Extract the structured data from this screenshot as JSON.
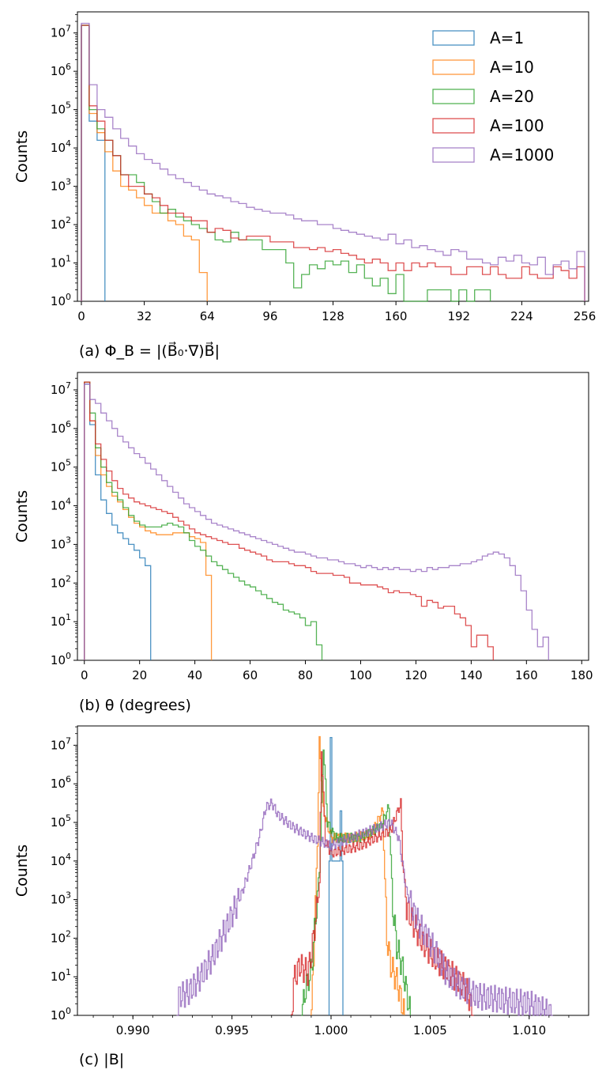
{
  "colors": {
    "A1": "#1f77b4",
    "A10": "#ff7f0e",
    "A20": "#2ca02c",
    "A100": "#d62728",
    "A1000": "#9467bd"
  },
  "chart_data": [
    {
      "type": "histogram",
      "title": "",
      "xlabel": "(a) Φ_B = |(B⃗₀·∇)B⃗|",
      "ylabel": "Counts",
      "yscale": "log",
      "xlim": [
        -2,
        258
      ],
      "ylim_exp": [
        0,
        7.55
      ],
      "xticks": [
        0,
        32,
        64,
        96,
        128,
        160,
        192,
        224,
        256
      ],
      "yticks_exp": [
        0,
        1,
        2,
        3,
        4,
        5,
        6,
        7
      ],
      "legend": {
        "position": "top-right",
        "entries": [
          "A=1",
          "A=10",
          "A=20",
          "A=100",
          "A=1000"
        ]
      },
      "bin_width": 4,
      "series": [
        {
          "name": "A=1",
          "color": "#1f77b4",
          "log_counts": [
            7.2,
            4.7,
            4.2
          ]
        },
        {
          "name": "A=10",
          "color": "#ff7f0e",
          "log_counts": [
            7.2,
            4.9,
            4.4,
            3.9,
            3.4,
            3.0,
            2.9,
            2.7,
            2.5,
            2.3,
            2.3,
            2.1,
            2.0,
            1.7,
            1.6,
            0.75
          ]
        },
        {
          "name": "A=20",
          "color": "#2ca02c",
          "log_counts": [
            7.2,
            5.0,
            4.5,
            4.2,
            3.8,
            3.3,
            3.3,
            3.1,
            2.8,
            2.6,
            2.3,
            2.4,
            2.2,
            2.1,
            2.0,
            1.9,
            1.8,
            1.6,
            1.55,
            1.8,
            1.6,
            1.6,
            1.6,
            1.35,
            1.35,
            1.35,
            1.0,
            0.35,
            0.7,
            0.95,
            0.85,
            1.05,
            0.95,
            1.05,
            0.75,
            0.95,
            0.6,
            0.4,
            0.6,
            0.2,
            0.7,
            0.0,
            0.0,
            0.0,
            0.3,
            0.3,
            0.3,
            0.0,
            0.3,
            0.0,
            0.3,
            0.3
          ]
        },
        {
          "name": "A=100",
          "color": "#d62728",
          "log_counts": [
            7.2,
            5.1,
            4.7,
            4.2,
            3.8,
            3.3,
            3.0,
            3.0,
            2.8,
            2.7,
            2.5,
            2.3,
            2.3,
            2.2,
            2.1,
            2.1,
            1.8,
            1.9,
            1.85,
            1.65,
            1.6,
            1.7,
            1.7,
            1.7,
            1.55,
            1.55,
            1.55,
            1.4,
            1.4,
            1.35,
            1.4,
            1.3,
            1.35,
            1.25,
            1.2,
            1.1,
            1.0,
            1.1,
            1.0,
            0.8,
            1.0,
            0.8,
            1.0,
            0.9,
            1.0,
            0.9,
            0.9,
            0.7,
            0.7,
            0.9,
            0.9,
            0.7,
            0.9,
            0.7,
            0.6,
            0.6,
            0.9,
            0.7,
            0.6,
            0.6,
            0.9,
            0.8,
            0.6,
            0.9
          ]
        },
        {
          "name": "A=1000",
          "color": "#9467bd",
          "log_counts": [
            7.25,
            5.65,
            5.0,
            4.8,
            4.5,
            4.25,
            4.05,
            3.85,
            3.7,
            3.6,
            3.45,
            3.3,
            3.2,
            3.1,
            3.0,
            2.9,
            2.8,
            2.75,
            2.7,
            2.6,
            2.55,
            2.45,
            2.4,
            2.35,
            2.3,
            2.3,
            2.25,
            2.15,
            2.1,
            2.1,
            2.0,
            2.0,
            1.9,
            1.85,
            1.8,
            1.75,
            1.7,
            1.65,
            1.6,
            1.75,
            1.5,
            1.6,
            1.4,
            1.45,
            1.35,
            1.3,
            1.2,
            1.35,
            1.3,
            1.1,
            1.1,
            1.0,
            0.95,
            1.15,
            1.05,
            1.2,
            1.0,
            0.95,
            1.15,
            0.7,
            0.95,
            1.05,
            0.85,
            1.3
          ]
        }
      ]
    },
    {
      "type": "histogram",
      "xlabel": "(b) θ (degrees)",
      "ylabel": "Counts",
      "yscale": "log",
      "xlim": [
        -2.5,
        182.5
      ],
      "ylim_exp": [
        0,
        7.45
      ],
      "xticks": [
        0,
        20,
        40,
        60,
        80,
        100,
        120,
        140,
        160,
        180
      ],
      "yticks_exp": [
        0,
        1,
        2,
        3,
        4,
        5,
        6,
        7
      ],
      "bin_width": 2,
      "series": [
        {
          "name": "A=1",
          "color": "#1f77b4",
          "log_counts": [
            7.15,
            6.1,
            4.8,
            4.15,
            3.8,
            3.5,
            3.3,
            3.15,
            3.0,
            2.85,
            2.65,
            2.45
          ]
        },
        {
          "name": "A=10",
          "color": "#ff7f0e",
          "log_counts": [
            7.2,
            6.2,
            5.3,
            4.8,
            4.5,
            4.25,
            4.1,
            3.9,
            3.7,
            3.55,
            3.45,
            3.35,
            3.3,
            3.25,
            3.25,
            3.25,
            3.3,
            3.3,
            3.3,
            3.2,
            3.15,
            3.05,
            2.2
          ]
        },
        {
          "name": "A=20",
          "color": "#2ca02c",
          "log_counts": [
            7.2,
            6.4,
            5.5,
            5.0,
            4.6,
            4.35,
            4.15,
            3.95,
            3.75,
            3.6,
            3.5,
            3.45,
            3.45,
            3.45,
            3.5,
            3.55,
            3.5,
            3.45,
            3.3,
            3.1,
            2.95,
            2.85,
            2.7,
            2.55,
            2.45,
            2.35,
            2.25,
            2.15,
            2.05,
            1.95,
            1.9,
            1.8,
            1.7,
            1.6,
            1.5,
            1.45,
            1.3,
            1.25,
            1.2,
            1.1,
            0.9,
            1.0,
            0.4
          ]
        },
        {
          "name": "A=100",
          "color": "#d62728",
          "log_counts": [
            7.2,
            6.2,
            5.6,
            5.2,
            4.9,
            4.65,
            4.45,
            4.3,
            4.2,
            4.1,
            4.05,
            4.0,
            3.95,
            3.9,
            3.85,
            3.8,
            3.7,
            3.6,
            3.5,
            3.4,
            3.3,
            3.25,
            3.2,
            3.15,
            3.1,
            3.05,
            3.0,
            3.0,
            2.9,
            2.85,
            2.8,
            2.75,
            2.7,
            2.6,
            2.55,
            2.55,
            2.55,
            2.5,
            2.45,
            2.45,
            2.4,
            2.3,
            2.25,
            2.25,
            2.25,
            2.2,
            2.2,
            2.15,
            2.0,
            2.0,
            1.95,
            1.95,
            1.95,
            1.9,
            1.85,
            1.75,
            1.8,
            1.75,
            1.75,
            1.7,
            1.65,
            1.4,
            1.55,
            1.5,
            1.35,
            1.4,
            1.4,
            1.2,
            1.1,
            0.9,
            0.35,
            0.65,
            0.65,
            0.35
          ]
        },
        {
          "name": "A=1000",
          "color": "#9467bd",
          "log_counts": [
            7.15,
            6.75,
            6.65,
            6.4,
            6.2,
            6.0,
            5.8,
            5.65,
            5.5,
            5.35,
            5.25,
            5.1,
            4.95,
            4.8,
            4.65,
            4.5,
            4.35,
            4.2,
            4.05,
            3.95,
            3.85,
            3.75,
            3.65,
            3.55,
            3.5,
            3.45,
            3.4,
            3.35,
            3.3,
            3.25,
            3.2,
            3.15,
            3.1,
            3.05,
            3.0,
            2.95,
            2.9,
            2.85,
            2.8,
            2.8,
            2.75,
            2.7,
            2.65,
            2.65,
            2.6,
            2.6,
            2.55,
            2.5,
            2.5,
            2.45,
            2.4,
            2.45,
            2.4,
            2.35,
            2.4,
            2.35,
            2.4,
            2.35,
            2.35,
            2.3,
            2.35,
            2.3,
            2.4,
            2.35,
            2.4,
            2.4,
            2.45,
            2.45,
            2.5,
            2.5,
            2.55,
            2.6,
            2.7,
            2.75,
            2.8,
            2.75,
            2.65,
            2.45,
            2.2,
            1.8,
            1.3,
            0.8,
            0.35,
            0.6
          ]
        }
      ]
    },
    {
      "type": "histogram",
      "xlabel": "(c) |B|",
      "ylabel": "Counts",
      "yscale": "log",
      "xlim": [
        0.9872,
        1.013
      ],
      "ylim_exp": [
        0,
        7.5
      ],
      "xticks": [
        0.99,
        0.995,
        1.0,
        1.005,
        1.01
      ],
      "yticks_exp": [
        0,
        1,
        2,
        3,
        4,
        5,
        6,
        7
      ],
      "series": [
        {
          "name": "A=1",
          "color": "#1f77b4",
          "spikes": [
            [
              1.0,
              7.2
            ],
            [
              1.0005,
              5.3
            ]
          ],
          "base": [
            0.9999,
            1.0006,
            4.0
          ]
        },
        {
          "name": "A=10",
          "color": "#ff7f0e",
          "range": [
            0.999,
            1.0037
          ],
          "profile": [
            [
              0.999,
              0.0
            ],
            [
              0.9991,
              1.5
            ],
            [
              0.9992,
              3.0
            ],
            [
              0.9993,
              4.5
            ],
            [
              0.9994,
              7.1
            ],
            [
              0.9996,
              5.3
            ],
            [
              1.0,
              4.6
            ],
            [
              1.001,
              4.6
            ],
            [
              1.002,
              4.7
            ],
            [
              1.0026,
              5.3
            ],
            [
              1.0027,
              3.5
            ],
            [
              1.0028,
              2.0
            ],
            [
              1.003,
              1.3
            ],
            [
              1.0033,
              0.9
            ],
            [
              1.0037,
              0.0
            ]
          ]
        },
        {
          "name": "A=20",
          "color": "#2ca02c",
          "range": [
            0.9985,
            1.004
          ],
          "profile": [
            [
              0.9985,
              0.0
            ],
            [
              0.9987,
              0.7
            ],
            [
              0.999,
              1.2
            ],
            [
              0.9992,
              2.5
            ],
            [
              0.9994,
              3.8
            ],
            [
              0.9996,
              7.0
            ],
            [
              0.9998,
              5.0
            ],
            [
              1.0002,
              4.6
            ],
            [
              1.0015,
              4.6
            ],
            [
              1.0025,
              4.9
            ],
            [
              1.0029,
              5.4
            ],
            [
              1.0031,
              2.8
            ],
            [
              1.0033,
              1.8
            ],
            [
              1.0036,
              1.2
            ],
            [
              1.004,
              0.0
            ]
          ]
        },
        {
          "name": "A=100",
          "color": "#d62728",
          "range": [
            0.998,
            1.0072
          ],
          "profile": [
            [
              0.998,
              0.0
            ],
            [
              0.9981,
              0.9
            ],
            [
              0.9984,
              1.3
            ],
            [
              0.9988,
              1.1
            ],
            [
              0.999,
              1.6
            ],
            [
              0.9992,
              2.5
            ],
            [
              0.9994,
              3.4
            ],
            [
              0.9995,
              6.9
            ],
            [
              0.9997,
              4.5
            ],
            [
              1.0,
              4.2
            ],
            [
              1.0015,
              4.4
            ],
            [
              1.003,
              4.8
            ],
            [
              1.0035,
              5.5
            ],
            [
              1.0036,
              4.0
            ],
            [
              1.0038,
              2.8
            ],
            [
              1.0042,
              2.3
            ],
            [
              1.0046,
              1.9
            ],
            [
              1.0052,
              1.5
            ],
            [
              1.0058,
              1.2
            ],
            [
              1.0064,
              0.9
            ],
            [
              1.0068,
              0.7
            ],
            [
              1.0072,
              0.0
            ]
          ]
        },
        {
          "name": "A=1000",
          "color": "#9467bd",
          "range": [
            0.9922,
            1.0112
          ],
          "profile": [
            [
              0.9922,
              0.0
            ],
            [
              0.9923,
              0.5
            ],
            [
              0.9928,
              0.6
            ],
            [
              0.9934,
              1.0
            ],
            [
              0.994,
              1.5
            ],
            [
              0.9948,
              2.4
            ],
            [
              0.9955,
              3.2
            ],
            [
              0.996,
              4.0
            ],
            [
              0.9964,
              4.7
            ],
            [
              0.9967,
              5.4
            ],
            [
              0.997,
              5.5
            ],
            [
              0.9973,
              5.2
            ],
            [
              0.998,
              4.9
            ],
            [
              0.999,
              4.6
            ],
            [
              1.0,
              4.4
            ],
            [
              1.001,
              4.6
            ],
            [
              1.002,
              4.8
            ],
            [
              1.003,
              5.0
            ],
            [
              1.0034,
              4.6
            ],
            [
              1.0038,
              3.2
            ],
            [
              1.0042,
              2.6
            ],
            [
              1.0046,
              2.2
            ],
            [
              1.0052,
              1.7
            ],
            [
              1.0058,
              1.1
            ],
            [
              1.0066,
              0.7
            ],
            [
              1.0074,
              0.5
            ],
            [
              1.0086,
              0.4
            ],
            [
              1.01,
              0.3
            ],
            [
              1.0112,
              0.0
            ]
          ]
        }
      ]
    }
  ]
}
